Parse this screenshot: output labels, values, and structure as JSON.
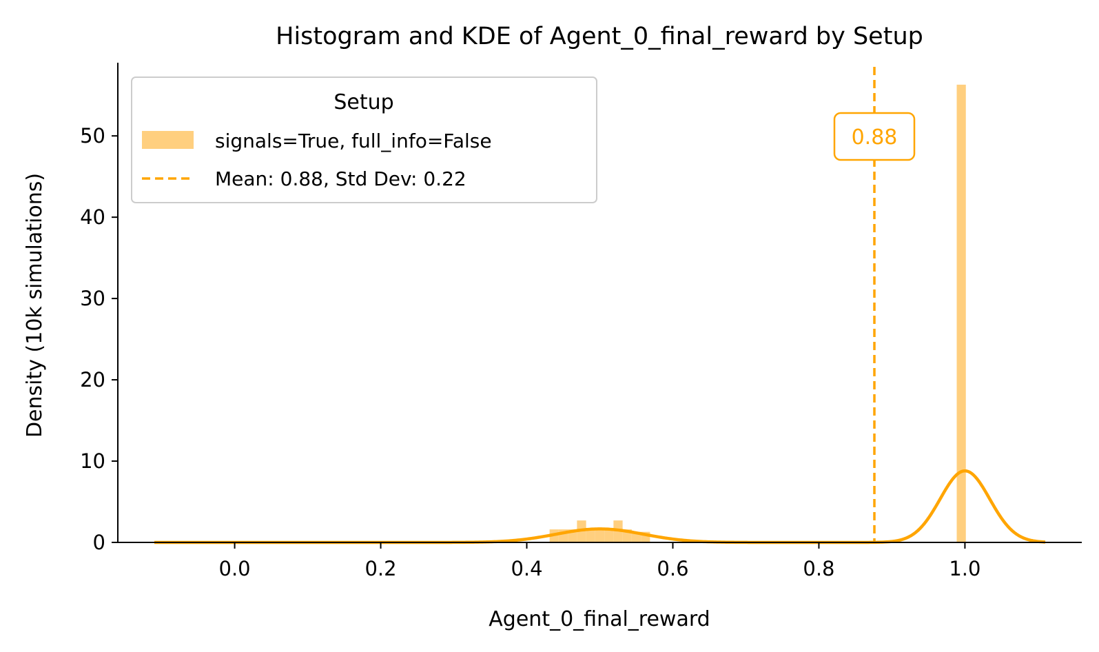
{
  "chart_data": {
    "type": "bar",
    "title": "Histogram and KDE of Agent_0_final_reward by Setup",
    "xlabel": "Agent_0_final_reward",
    "ylabel": "Density (10k simulations)",
    "xlim": [
      -0.16,
      1.16
    ],
    "ylim": [
      0,
      59
    ],
    "x_ticks": [
      0.0,
      0.2,
      0.4,
      0.6,
      0.8,
      1.0
    ],
    "x_tick_labels": [
      "0.0",
      "0.2",
      "0.4",
      "0.6",
      "0.8",
      "1.0"
    ],
    "y_ticks": [
      0,
      10,
      20,
      30,
      40,
      50
    ],
    "y_tick_labels": [
      "0",
      "10",
      "20",
      "30",
      "40",
      "50"
    ],
    "grid": false,
    "legend": {
      "title": "Setup",
      "placement": "upper left",
      "histogram_label": "signals=True, full_info=False",
      "mean_label": "Mean: 0.88, Std Dev: 0.22"
    },
    "colors": {
      "histogram": "#ffcf7f",
      "kde": "#ffa500",
      "mean_line": "#ffa500"
    },
    "histogram": {
      "bin_width": 0.0125,
      "bins": [
        {
          "x": 0.4375,
          "density": 1.6
        },
        {
          "x": 0.45,
          "density": 1.6
        },
        {
          "x": 0.4625,
          "density": 1.6
        },
        {
          "x": 0.475,
          "density": 2.7
        },
        {
          "x": 0.4875,
          "density": 1.6
        },
        {
          "x": 0.5,
          "density": 1.6
        },
        {
          "x": 0.5125,
          "density": 1.6
        },
        {
          "x": 0.525,
          "density": 2.7
        },
        {
          "x": 0.5375,
          "density": 1.6
        },
        {
          "x": 0.55,
          "density": 1.3
        },
        {
          "x": 0.5625,
          "density": 1.3
        },
        {
          "x": 0.995,
          "density": 56.3
        }
      ]
    },
    "kde": {
      "x_range": [
        -0.11,
        1.11
      ],
      "components": [
        {
          "weight": 0.25,
          "center": 0.5,
          "sd": 0.06
        },
        {
          "weight": 0.75,
          "center": 1.0,
          "sd": 0.034
        }
      ]
    },
    "mean_line": {
      "x": 0.876,
      "label": "0.88"
    }
  }
}
